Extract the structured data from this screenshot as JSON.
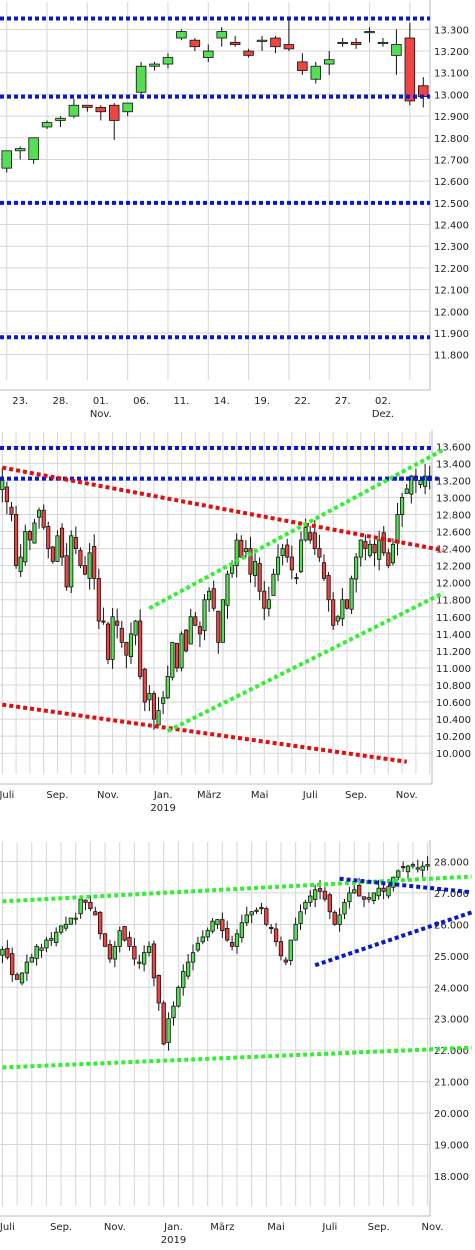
{
  "colors": {
    "up": "#55dd55",
    "down": "#ee4444",
    "grid": "#d6d6d6",
    "blue": "#0a18c8",
    "red": "#dd1111",
    "green": "#33ee33"
  },
  "chart_data": [
    {
      "type": "candlestick",
      "x_ticks": [
        {
          "i": 1,
          "label": "23."
        },
        {
          "i": 4,
          "label": "28."
        },
        {
          "i": 7,
          "label": "01.",
          "sub": "Nov."
        },
        {
          "i": 10,
          "label": "06."
        },
        {
          "i": 13,
          "label": "11."
        },
        {
          "i": 16,
          "label": "14."
        },
        {
          "i": 19,
          "label": "19."
        },
        {
          "i": 22,
          "label": "22."
        },
        {
          "i": 25,
          "label": "27."
        },
        {
          "i": 28,
          "label": "02.",
          "sub": "Dez."
        }
      ],
      "y_ticks": [
        11800,
        11900,
        12000,
        12100,
        12200,
        12300,
        12400,
        12500,
        12600,
        12700,
        12800,
        12900,
        13000,
        13100,
        13200,
        13300
      ],
      "ylim": [
        11720,
        13380
      ],
      "hlines": [
        {
          "y": 13350,
          "color": "blue"
        },
        {
          "y": 12990,
          "color": "blue"
        },
        {
          "y": 12500,
          "color": "blue"
        },
        {
          "y": 11880,
          "color": "blue"
        }
      ],
      "candles": [
        [
          12660,
          12740,
          12640,
          12740
        ],
        [
          12740,
          12760,
          12700,
          12750
        ],
        [
          12700,
          12800,
          12680,
          12800
        ],
        [
          12850,
          12880,
          12840,
          12870
        ],
        [
          12880,
          12900,
          12850,
          12890
        ],
        [
          12900,
          12980,
          12890,
          12950
        ],
        [
          12950,
          12950,
          12920,
          12940
        ],
        [
          12940,
          12950,
          12880,
          12920
        ],
        [
          12950,
          12960,
          12790,
          12880
        ],
        [
          12920,
          12960,
          12900,
          12960
        ],
        [
          13010,
          13150,
          13000,
          13130
        ],
        [
          13130,
          13150,
          13110,
          13140
        ],
        [
          13140,
          13190,
          13120,
          13170
        ],
        [
          13260,
          13300,
          13250,
          13290
        ],
        [
          13250,
          13260,
          13200,
          13220
        ],
        [
          13170,
          13230,
          13150,
          13200
        ],
        [
          13260,
          13310,
          13220,
          13290
        ],
        [
          13240,
          13270,
          13220,
          13230
        ],
        [
          13200,
          13210,
          13170,
          13180
        ],
        [
          13250,
          13270,
          13200,
          13250
        ],
        [
          13260,
          13270,
          13190,
          13220
        ],
        [
          13230,
          13350,
          13200,
          13210
        ],
        [
          13150,
          13190,
          13090,
          13110
        ],
        [
          13070,
          13150,
          13050,
          13130
        ],
        [
          13140,
          13200,
          13090,
          13160
        ],
        [
          13240,
          13260,
          13220,
          13240
        ],
        [
          13240,
          13260,
          13210,
          13230
        ],
        [
          13290,
          13310,
          13240,
          13290
        ],
        [
          13240,
          13260,
          13220,
          13240
        ],
        [
          13180,
          13300,
          13090,
          13230
        ],
        [
          13260,
          13330,
          12950,
          12970
        ],
        [
          13040,
          13080,
          12940,
          12990
        ]
      ]
    },
    {
      "type": "candlestick",
      "x_ticks": [
        {
          "i": 1,
          "label": "Juli"
        },
        {
          "i": 12,
          "label": "Sep."
        },
        {
          "i": 23,
          "label": "Nov."
        },
        {
          "i": 35,
          "label": "Jan.",
          "sub": "2019"
        },
        {
          "i": 45,
          "label": "März"
        },
        {
          "i": 56,
          "label": "Mai"
        },
        {
          "i": 67,
          "label": "Juli"
        },
        {
          "i": 77,
          "label": "Sep."
        },
        {
          "i": 88,
          "label": "Nov."
        }
      ],
      "y_ticks": [
        10000,
        10200,
        10400,
        10600,
        10800,
        11000,
        11200,
        11400,
        11600,
        11800,
        12000,
        12200,
        12400,
        12600,
        12800,
        13000,
        13200,
        13400,
        13600
      ],
      "ylim": [
        9850,
        13650
      ],
      "hlines": [
        {
          "y": 13580,
          "color": "blue"
        },
        {
          "y": 13220,
          "color": "blue"
        }
      ],
      "trend": [
        {
          "x1": 0,
          "y1": 13350,
          "x2": 96,
          "y2": 12380,
          "color": "red"
        },
        {
          "x1": 0,
          "y1": 10570,
          "x2": 88,
          "y2": 9900,
          "color": "red"
        },
        {
          "x1": 32,
          "y1": 11700,
          "x2": 96,
          "y2": 13560,
          "color": "green"
        },
        {
          "x1": 36,
          "y1": 10260,
          "x2": 96,
          "y2": 11880,
          "color": "green"
        },
        {
          "x1": 85,
          "y1": 13220,
          "x2": 95,
          "y2": 13220,
          "color": "blue"
        }
      ],
      "closes": [
        13200,
        12950,
        12800,
        12200,
        12300,
        12600,
        12500,
        12700,
        12850,
        12650,
        12400,
        12250,
        12550,
        12300,
        11950,
        12550,
        12400,
        12200,
        12100,
        12350,
        12050,
        11550,
        11550,
        11100,
        11600,
        11500,
        11300,
        11150,
        11400,
        11550,
        10900,
        10600,
        10700,
        10400,
        10500,
        10650,
        10900,
        11300,
        11000,
        11400,
        11200,
        11600,
        11500,
        11400,
        11800,
        11900,
        11700,
        11300,
        11800,
        12100,
        12200,
        12500,
        12300,
        12400,
        12100,
        12250,
        11900,
        11700,
        11800,
        12100,
        12300,
        12400,
        12300,
        12150,
        12050,
        12500,
        12650,
        12500,
        12400,
        12300,
        12050,
        11800,
        11500,
        11600,
        11800,
        11700,
        12050,
        12300,
        12500,
        12400,
        12450,
        12350,
        12500,
        12350,
        12200,
        12450,
        12800,
        13000,
        13100,
        13250,
        13200,
        13200,
        13250,
        13200
      ]
    },
    {
      "type": "candlestick",
      "x_ticks": [
        {
          "i": 1,
          "label": "Juli"
        },
        {
          "i": 12,
          "label": "Sep."
        },
        {
          "i": 23,
          "label": "Nov."
        },
        {
          "i": 35,
          "label": "Jan.",
          "sub": "2019"
        },
        {
          "i": 45,
          "label": "März"
        },
        {
          "i": 56,
          "label": "Mai"
        },
        {
          "i": 67,
          "label": "Juli"
        },
        {
          "i": 77,
          "label": "Sep."
        },
        {
          "i": 88,
          "label": "Nov."
        }
      ],
      "y_ticks": [
        18000,
        19000,
        20000,
        21000,
        22000,
        23000,
        24000,
        25000,
        26000,
        27000,
        28000
      ],
      "ylim": [
        17300,
        28300
      ],
      "trend": [
        {
          "x1": 0,
          "y1": 21450,
          "x2": 96,
          "y2": 22080,
          "color": "green"
        },
        {
          "x1": 0,
          "y1": 26730,
          "x2": 96,
          "y2": 27520,
          "color": "green"
        },
        {
          "x1": 64,
          "y1": 24700,
          "x2": 96,
          "y2": 26380,
          "color": "blue"
        },
        {
          "x1": 69,
          "y1": 27450,
          "x2": 96,
          "y2": 27020,
          "color": "blue"
        }
      ],
      "closes": [
        25200,
        24950,
        24400,
        24250,
        24450,
        24800,
        24950,
        25300,
        25250,
        25500,
        25550,
        25750,
        25950,
        26000,
        26200,
        26200,
        26800,
        26700,
        26500,
        26300,
        25700,
        25300,
        24900,
        25300,
        25800,
        25500,
        25300,
        24900,
        24800,
        25100,
        25300,
        24300,
        23500,
        22200,
        23000,
        23400,
        24000,
        24500,
        24800,
        25100,
        25400,
        25600,
        25800,
        26100,
        26150,
        25800,
        25500,
        25300,
        25700,
        26050,
        26300,
        26400,
        26450,
        26500,
        26000,
        25900,
        25450,
        25000,
        24800,
        25500,
        26000,
        26400,
        26700,
        26900,
        27100,
        27050,
        26800,
        26400,
        26000,
        26300,
        26700,
        27000,
        27100,
        26900,
        26800,
        26850,
        27000,
        27150,
        27050,
        27200,
        27500,
        27700,
        27800,
        27850,
        27900,
        27800,
        27850,
        27900
      ]
    }
  ]
}
